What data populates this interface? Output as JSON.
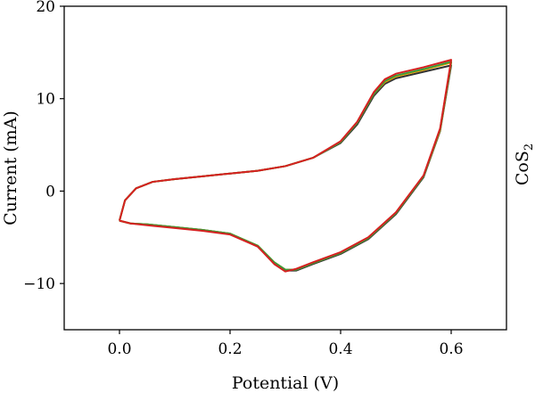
{
  "chart_data": {
    "type": "line",
    "xlabel": "Potential (V)",
    "ylabel": "Current (mA)",
    "side_label": {
      "main": "CoS",
      "sub": "2"
    },
    "xlim": [
      -0.1,
      0.7
    ],
    "ylim": [
      -15,
      20
    ],
    "xticks": [
      0.0,
      0.2,
      0.4,
      0.6
    ],
    "xtick_labels": [
      "0.0",
      "0.2",
      "0.4",
      "0.6"
    ],
    "yticks": [
      -10,
      0,
      10,
      20
    ],
    "ytick_labels": [
      "−10",
      "0",
      "10",
      "20"
    ],
    "grid": false,
    "legend": "none",
    "series": [
      {
        "color": "#333333",
        "x": [
          0.0,
          0.01,
          0.03,
          0.06,
          0.1,
          0.15,
          0.2,
          0.25,
          0.3,
          0.35,
          0.4,
          0.43,
          0.46,
          0.48,
          0.5,
          0.55,
          0.6,
          0.6,
          0.58,
          0.55,
          0.5,
          0.45,
          0.4,
          0.35,
          0.32,
          0.3,
          0.28,
          0.25,
          0.2,
          0.15,
          0.1,
          0.05,
          0.02,
          0.0
        ],
        "y": [
          -3.2,
          -1.0,
          0.3,
          1.0,
          1.3,
          1.6,
          1.9,
          2.2,
          2.7,
          3.6,
          5.2,
          7.2,
          10.3,
          11.6,
          12.2,
          12.9,
          13.6,
          13.6,
          6.5,
          1.5,
          -2.5,
          -5.2,
          -6.8,
          -7.9,
          -8.6,
          -8.6,
          -7.8,
          -6.0,
          -4.6,
          -4.2,
          -3.9,
          -3.6,
          -3.5,
          -3.2
        ]
      },
      {
        "color": "#e8a000",
        "x": [
          0.0,
          0.01,
          0.03,
          0.06,
          0.1,
          0.15,
          0.2,
          0.25,
          0.3,
          0.35,
          0.4,
          0.43,
          0.46,
          0.48,
          0.5,
          0.55,
          0.6,
          0.6,
          0.58,
          0.55,
          0.5,
          0.45,
          0.4,
          0.35,
          0.32,
          0.3,
          0.28,
          0.25,
          0.2,
          0.15,
          0.1,
          0.05,
          0.02,
          0.0
        ],
        "y": [
          -3.2,
          -1.0,
          0.3,
          1.0,
          1.3,
          1.6,
          1.9,
          2.2,
          2.7,
          3.6,
          5.3,
          7.4,
          10.5,
          11.8,
          12.4,
          13.1,
          13.9,
          13.9,
          6.6,
          1.6,
          -2.4,
          -5.1,
          -6.7,
          -7.8,
          -8.5,
          -8.5,
          -7.7,
          -5.9,
          -4.6,
          -4.2,
          -3.9,
          -3.6,
          -3.5,
          -3.2
        ]
      },
      {
        "color": "#3a9a3a",
        "x": [
          0.0,
          0.01,
          0.03,
          0.06,
          0.1,
          0.15,
          0.2,
          0.25,
          0.3,
          0.35,
          0.4,
          0.43,
          0.46,
          0.48,
          0.5,
          0.55,
          0.6,
          0.6,
          0.58,
          0.55,
          0.5,
          0.45,
          0.4,
          0.35,
          0.32,
          0.3,
          0.28,
          0.25,
          0.2,
          0.15,
          0.1,
          0.05,
          0.02,
          0.0
        ],
        "y": [
          -3.2,
          -1.0,
          0.3,
          1.0,
          1.3,
          1.6,
          1.9,
          2.2,
          2.7,
          3.6,
          5.3,
          7.4,
          10.5,
          11.9,
          12.5,
          13.2,
          14.0,
          14.0,
          6.7,
          1.6,
          -2.4,
          -5.1,
          -6.7,
          -7.8,
          -8.5,
          -8.5,
          -7.7,
          -5.9,
          -4.6,
          -4.2,
          -3.9,
          -3.6,
          -3.5,
          -3.2
        ]
      },
      {
        "color": "#d62020",
        "x": [
          0.0,
          0.01,
          0.03,
          0.06,
          0.1,
          0.15,
          0.2,
          0.25,
          0.3,
          0.35,
          0.4,
          0.43,
          0.46,
          0.48,
          0.5,
          0.55,
          0.6,
          0.6,
          0.58,
          0.55,
          0.5,
          0.45,
          0.4,
          0.35,
          0.32,
          0.3,
          0.28,
          0.25,
          0.2,
          0.15,
          0.1,
          0.05,
          0.02,
          0.0
        ],
        "y": [
          -3.2,
          -1.0,
          0.3,
          1.0,
          1.3,
          1.6,
          1.9,
          2.2,
          2.7,
          3.6,
          5.4,
          7.5,
          10.7,
          12.1,
          12.7,
          13.4,
          14.2,
          14.2,
          6.8,
          1.7,
          -2.3,
          -5.0,
          -6.6,
          -7.7,
          -8.4,
          -8.7,
          -7.9,
          -6.0,
          -4.7,
          -4.3,
          -4.0,
          -3.7,
          -3.5,
          -3.2
        ]
      }
    ]
  }
}
